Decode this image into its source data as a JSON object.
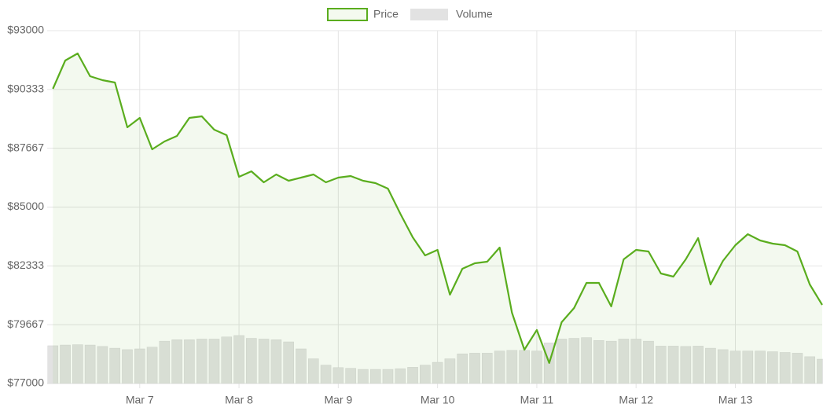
{
  "chart_data": {
    "type": "line",
    "x": [
      6.125,
      6.25,
      6.375,
      6.5,
      6.625,
      6.75,
      6.875,
      7.0,
      7.125,
      7.25,
      7.375,
      7.5,
      7.625,
      7.75,
      7.875,
      8.0,
      8.125,
      8.25,
      8.375,
      8.5,
      8.625,
      8.75,
      8.875,
      9.0,
      9.125,
      9.25,
      9.375,
      9.5,
      9.625,
      9.75,
      9.875,
      10.0,
      10.125,
      10.25,
      10.375,
      10.5,
      10.625,
      10.75,
      10.875,
      11.0,
      11.125,
      11.25,
      11.375,
      11.5,
      11.625,
      11.75,
      11.875,
      12.0,
      12.125,
      12.25,
      12.375,
      12.5,
      12.625,
      12.75,
      12.875,
      13.0,
      13.125,
      13.25,
      13.375,
      13.5,
      13.625,
      13.75,
      13.875
    ],
    "series": [
      {
        "name": "Price",
        "color": "#5aad1e",
        "values": [
          90363,
          91646,
          91967,
          90933,
          90755,
          90648,
          88617,
          89045,
          87620,
          87976,
          88225,
          89045,
          89116,
          88510,
          88261,
          86373,
          86623,
          86124,
          86480,
          86195,
          86338,
          86480,
          86124,
          86338,
          86409,
          86195,
          86088,
          85837,
          84698,
          83629,
          82810,
          83059,
          81028,
          82204,
          82453,
          82525,
          83166,
          80209,
          78534,
          79425,
          77929,
          79781,
          80422,
          81563,
          81563,
          80494,
          82631,
          83059,
          82988,
          81990,
          81848,
          82631,
          83593,
          81491,
          82560,
          83273,
          83771,
          83486,
          83344,
          83273,
          82988,
          81491,
          80565
        ]
      },
      {
        "name": "Volume",
        "color": "#e2e2e2",
        "type": "bar",
        "axis": "y2",
        "values": [
          10.7,
          10.9,
          11.0,
          10.9,
          10.5,
          10.0,
          9.6,
          9.8,
          10.3,
          12.0,
          12.4,
          12.4,
          12.6,
          12.6,
          13.2,
          13.6,
          12.8,
          12.6,
          12.4,
          11.8,
          9.8,
          7.0,
          5.2,
          4.5,
          4.3,
          4.0,
          4.0,
          4.0,
          4.2,
          4.6,
          5.2,
          6.0,
          7.0,
          8.4,
          8.6,
          8.6,
          9.2,
          9.4,
          9.4,
          9.2,
          11.5,
          12.6,
          12.8,
          13.0,
          12.2,
          12.0,
          12.6,
          12.6,
          12.0,
          10.6,
          10.6,
          10.5,
          10.6,
          10.0,
          9.6,
          9.2,
          9.2,
          9.2,
          9.0,
          8.8,
          8.6,
          7.6,
          6.9
        ]
      }
    ],
    "xlim": [
      6.115,
      13.875
    ],
    "xticks": [
      {
        "value": 7,
        "label": "Mar 7"
      },
      {
        "value": 8,
        "label": "Mar 8"
      },
      {
        "value": 9,
        "label": "Mar 9"
      },
      {
        "value": 10,
        "label": "Mar 10"
      },
      {
        "value": 11,
        "label": "Mar 11"
      },
      {
        "value": 12,
        "label": "Mar 12"
      },
      {
        "value": 13,
        "label": "Mar 13"
      }
    ],
    "ylim": [
      77000,
      93000
    ],
    "yticks": [
      {
        "value": 77000,
        "label": "$77000"
      },
      {
        "value": 79667,
        "label": "$79667"
      },
      {
        "value": 82333,
        "label": "$82333"
      },
      {
        "value": 85000,
        "label": "$85000"
      },
      {
        "value": 87667,
        "label": "$87667"
      },
      {
        "value": 90333,
        "label": "$90333"
      },
      {
        "value": 93000,
        "label": "$93000"
      }
    ],
    "y2lim": [
      0,
      100
    ],
    "grid": true,
    "legend": "top"
  }
}
